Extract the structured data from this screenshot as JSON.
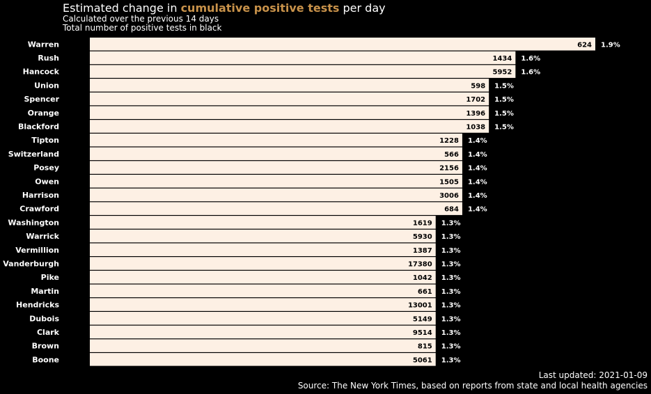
{
  "header": {
    "title_prefix": "Estimated change in ",
    "title_highlight": "cumulative positive tests",
    "title_suffix": " per day",
    "subtitle_1": "Calculated over the previous 14 days",
    "subtitle_2": "Total number of positive tests in black"
  },
  "footer": {
    "updated": "Last updated: 2021-01-09",
    "source": "Source: The New York Times, based on reports from state and local health agencies"
  },
  "colors": {
    "background": "#000000",
    "bar": "#fdf0e4",
    "highlight": "#c8924a",
    "text": "#ffffff",
    "bar_text": "#000000"
  },
  "chart_data": {
    "type": "bar",
    "orientation": "horizontal",
    "categories": [
      "Warren",
      "Rush",
      "Hancock",
      "Union",
      "Spencer",
      "Orange",
      "Blackford",
      "Tipton",
      "Switzerland",
      "Posey",
      "Owen",
      "Harrison",
      "Crawford",
      "Washington",
      "Warrick",
      "Vermillion",
      "Vanderburgh",
      "Pike",
      "Martin",
      "Hendricks",
      "Dubois",
      "Clark",
      "Brown",
      "Boone"
    ],
    "values": [
      1.9,
      1.6,
      1.6,
      1.5,
      1.5,
      1.5,
      1.5,
      1.4,
      1.4,
      1.4,
      1.4,
      1.4,
      1.4,
      1.3,
      1.3,
      1.3,
      1.3,
      1.3,
      1.3,
      1.3,
      1.3,
      1.3,
      1.3,
      1.3
    ],
    "value_labels": [
      "1.9%",
      "1.6%",
      "1.6%",
      "1.5%",
      "1.5%",
      "1.5%",
      "1.5%",
      "1.4%",
      "1.4%",
      "1.4%",
      "1.4%",
      "1.4%",
      "1.4%",
      "1.3%",
      "1.3%",
      "1.3%",
      "1.3%",
      "1.3%",
      "1.3%",
      "1.3%",
      "1.3%",
      "1.3%",
      "1.3%",
      "1.3%"
    ],
    "totals": [
      "624",
      "1434",
      "5952",
      "598",
      "1702",
      "1396",
      "1038",
      "1228",
      "566",
      "2156",
      "1505",
      "3006",
      "684",
      "1619",
      "5930",
      "1387",
      "17380",
      "1042",
      "661",
      "13001",
      "5149",
      "9514",
      "815",
      "5061"
    ],
    "xlim": [
      0,
      1.9
    ],
    "grid": false,
    "legend": "none"
  }
}
